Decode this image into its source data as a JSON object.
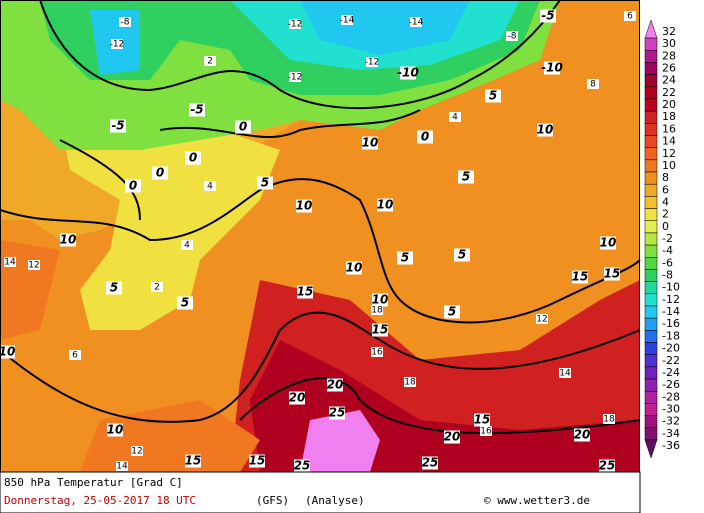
{
  "colorbar": {
    "levels": [
      32,
      30,
      28,
      26,
      24,
      22,
      20,
      18,
      16,
      14,
      12,
      10,
      8,
      6,
      4,
      2,
      0,
      -2,
      -4,
      -6,
      -8,
      -10,
      -12,
      -14,
      -16,
      -18,
      -20,
      -22,
      -24,
      -26,
      -28,
      -30,
      -32,
      -34,
      -36
    ],
    "colors": [
      "#f080f0",
      "#d040c0",
      "#b01890",
      "#a00060",
      "#a00030",
      "#b00020",
      "#c00020",
      "#d02020",
      "#e03020",
      "#e84820",
      "#f06020",
      "#f07820",
      "#f09020",
      "#f0a828",
      "#f0c030",
      "#f0e040",
      "#e0f050",
      "#b0e840",
      "#80e040",
      "#50d840",
      "#30d060",
      "#20d8a0",
      "#20e0d0",
      "#20c8f0",
      "#20a0f0",
      "#2070f0",
      "#3040e0",
      "#5030d0",
      "#7020c0",
      "#9020b0",
      "#b020a0",
      "#c02090",
      "#a01080",
      "#801070",
      "#601060"
    ]
  },
  "map": {
    "contour_labels": [
      -5,
      -10,
      -5,
      -5,
      0,
      0,
      0,
      0,
      0,
      5,
      5,
      5,
      5,
      5,
      5,
      5,
      10,
      10,
      10,
      10,
      10,
      10,
      10,
      10,
      10,
      15,
      15,
      15,
      15,
      15,
      15,
      15,
      20,
      20,
      20,
      20,
      25,
      25,
      25,
      25,
      5,
      10,
      -10,
      -12,
      -14,
      -14,
      -12,
      -12,
      -8,
      -12,
      -8,
      4,
      4,
      2,
      6,
      12,
      14,
      14,
      12,
      18,
      16,
      18,
      16,
      12,
      14,
      18,
      8,
      6,
      4,
      2
    ]
  },
  "footer": {
    "product": "850 hPa Temperatur [Grad C]",
    "date": "Donnerstag, 25-05-2017  18 UTC",
    "model": "(GFS)",
    "run": "(Analyse)",
    "credit": "© www.wetter3.de"
  }
}
